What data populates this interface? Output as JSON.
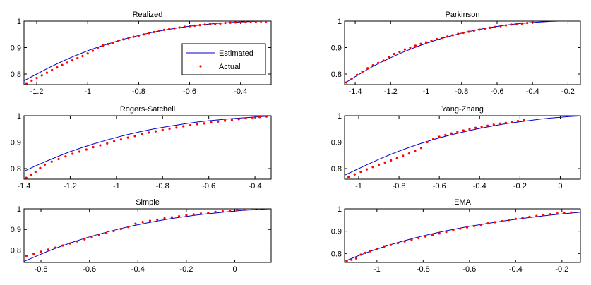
{
  "chart_data": [
    {
      "type": "line",
      "title": "Realized",
      "xlim": [
        -1.25,
        -0.28
      ],
      "ylim": [
        0.76,
        1.0
      ],
      "xticks": [
        "-1.2",
        "-1",
        "-0.8",
        "-0.6",
        "-0.4"
      ],
      "xtick_values": [
        -1.2,
        -1.0,
        -0.8,
        -0.6,
        -0.4
      ],
      "yticks": [
        "0.8",
        "0.9",
        "1"
      ],
      "ytick_values": [
        0.8,
        0.9,
        1.0
      ],
      "legend": {
        "position": "right",
        "entries": [
          "Estimated",
          "Actual"
        ]
      },
      "series": [
        {
          "name": "Estimated",
          "style": "line",
          "color": "#0000cc",
          "x": [
            -1.25,
            -1.2,
            -1.15,
            -1.1,
            -1.05,
            -1.0,
            -0.95,
            -0.9,
            -0.85,
            -0.8,
            -0.75,
            -0.7,
            -0.65,
            -0.6,
            -0.55,
            -0.5,
            -0.45,
            -0.4,
            -0.35,
            -0.3,
            -0.28
          ],
          "y": [
            0.775,
            0.8,
            0.825,
            0.848,
            0.869,
            0.888,
            0.905,
            0.92,
            0.934,
            0.946,
            0.957,
            0.966,
            0.974,
            0.981,
            0.986,
            0.991,
            0.994,
            0.997,
            0.999,
            1.0,
            1.0
          ]
        },
        {
          "name": "Actual",
          "style": "points",
          "color": "#ff0000",
          "x": [
            -1.24,
            -1.22,
            -1.2,
            -1.18,
            -1.16,
            -1.14,
            -1.12,
            -1.1,
            -1.08,
            -1.06,
            -1.04,
            -1.02,
            -1.0,
            -0.98,
            -0.96,
            -0.94,
            -0.92,
            -0.9,
            -0.88,
            -0.86,
            -0.84,
            -0.82,
            -0.8,
            -0.78,
            -0.76,
            -0.74,
            -0.72,
            -0.7,
            -0.68,
            -0.66,
            -0.64,
            -0.62,
            -0.6,
            -0.58,
            -0.56,
            -0.54,
            -0.52,
            -0.5,
            -0.48,
            -0.46,
            -0.44,
            -0.42,
            -0.4,
            -0.38,
            -0.36,
            -0.34,
            -0.32,
            -0.3
          ],
          "y": [
            0.765,
            0.775,
            0.785,
            0.795,
            0.805,
            0.815,
            0.825,
            0.834,
            0.843,
            0.852,
            0.86,
            0.868,
            0.878,
            0.888,
            0.9,
            0.908,
            0.913,
            0.918,
            0.925,
            0.931,
            0.936,
            0.941,
            0.945,
            0.95,
            0.955,
            0.959,
            0.963,
            0.967,
            0.97,
            0.973,
            0.976,
            0.979,
            0.981,
            0.983,
            0.985,
            0.987,
            0.989,
            0.99,
            0.991,
            0.993,
            0.994,
            0.995,
            0.996,
            0.997,
            0.998,
            0.998,
            0.999,
            0.999
          ]
        }
      ]
    },
    {
      "type": "line",
      "title": "Parkinson",
      "xlim": [
        -1.46,
        -0.13
      ],
      "ylim": [
        0.76,
        1.0
      ],
      "xticks": [
        "-1.4",
        "-1.2",
        "-1",
        "-0.8",
        "-0.6",
        "-0.4",
        "-0.2"
      ],
      "xtick_values": [
        -1.4,
        -1.2,
        -1.0,
        -0.8,
        -0.6,
        -0.4,
        -0.2
      ],
      "yticks": [
        "0.8",
        "0.9",
        "1"
      ],
      "ytick_values": [
        0.8,
        0.9,
        1.0
      ],
      "series": [
        {
          "name": "Estimated",
          "style": "line",
          "color": "#0000cc",
          "x": [
            -1.46,
            -1.4,
            -1.35,
            -1.3,
            -1.25,
            -1.2,
            -1.15,
            -1.1,
            -1.05,
            -1.0,
            -0.95,
            -0.9,
            -0.85,
            -0.8,
            -0.75,
            -0.7,
            -0.65,
            -0.6,
            -0.55,
            -0.5,
            -0.45,
            -0.4,
            -0.35,
            -0.3,
            -0.25,
            -0.2
          ],
          "y": [
            0.765,
            0.79,
            0.81,
            0.829,
            0.846,
            0.862,
            0.877,
            0.891,
            0.904,
            0.916,
            0.927,
            0.937,
            0.946,
            0.955,
            0.962,
            0.969,
            0.975,
            0.98,
            0.985,
            0.989,
            0.992,
            0.995,
            0.997,
            0.999,
            1.0,
            1.0
          ]
        },
        {
          "name": "Actual",
          "style": "points",
          "color": "#ff0000",
          "x": [
            -1.45,
            -1.42,
            -1.39,
            -1.36,
            -1.33,
            -1.3,
            -1.27,
            -1.24,
            -1.21,
            -1.18,
            -1.15,
            -1.12,
            -1.09,
            -1.06,
            -1.03,
            -1.0,
            -0.97,
            -0.94,
            -0.91,
            -0.88,
            -0.85,
            -0.82,
            -0.79,
            -0.76,
            -0.73,
            -0.7,
            -0.67,
            -0.64,
            -0.61,
            -0.58,
            -0.55,
            -0.52,
            -0.49,
            -0.46,
            -0.43,
            -0.4
          ],
          "y": [
            0.768,
            0.782,
            0.797,
            0.809,
            0.822,
            0.833,
            0.842,
            0.851,
            0.865,
            0.876,
            0.884,
            0.893,
            0.9,
            0.907,
            0.914,
            0.92,
            0.926,
            0.932,
            0.937,
            0.942,
            0.947,
            0.952,
            0.956,
            0.96,
            0.964,
            0.968,
            0.971,
            0.975,
            0.978,
            0.981,
            0.984,
            0.987,
            0.989,
            0.991,
            0.993,
            0.995
          ]
        }
      ]
    },
    {
      "type": "line",
      "title": "Rogers-Satchell",
      "xlim": [
        -1.4,
        -0.33
      ],
      "ylim": [
        0.76,
        1.0
      ],
      "xticks": [
        "-1.4",
        "-1.2",
        "-1",
        "-0.8",
        "-0.6",
        "-0.4"
      ],
      "xtick_values": [
        -1.4,
        -1.2,
        -1.0,
        -0.8,
        -0.6,
        -0.4
      ],
      "yticks": [
        "0.8",
        "0.9",
        "1"
      ],
      "ytick_values": [
        0.8,
        0.9,
        1.0
      ],
      "series": [
        {
          "name": "Estimated",
          "style": "line",
          "color": "#0000cc",
          "x": [
            -1.4,
            -1.35,
            -1.3,
            -1.25,
            -1.2,
            -1.15,
            -1.1,
            -1.05,
            -1.0,
            -0.95,
            -0.9,
            -0.85,
            -0.8,
            -0.75,
            -0.7,
            -0.65,
            -0.6,
            -0.55,
            -0.5,
            -0.45,
            -0.4,
            -0.35,
            -0.33
          ],
          "y": [
            0.79,
            0.81,
            0.829,
            0.847,
            0.864,
            0.879,
            0.893,
            0.906,
            0.918,
            0.929,
            0.939,
            0.948,
            0.956,
            0.963,
            0.97,
            0.976,
            0.981,
            0.985,
            0.989,
            0.992,
            0.995,
            0.998,
            0.999
          ]
        },
        {
          "name": "Actual",
          "style": "points",
          "color": "#ff0000",
          "x": [
            -1.39,
            -1.37,
            -1.35,
            -1.33,
            -1.31,
            -1.28,
            -1.25,
            -1.22,
            -1.19,
            -1.16,
            -1.13,
            -1.1,
            -1.07,
            -1.04,
            -1.01,
            -0.98,
            -0.95,
            -0.92,
            -0.89,
            -0.86,
            -0.83,
            -0.8,
            -0.77,
            -0.74,
            -0.71,
            -0.68,
            -0.65,
            -0.62,
            -0.59,
            -0.56,
            -0.53,
            -0.5,
            -0.47,
            -0.44,
            -0.41,
            -0.38,
            -0.35
          ],
          "y": [
            0.765,
            0.775,
            0.788,
            0.802,
            0.815,
            0.826,
            0.836,
            0.846,
            0.856,
            0.864,
            0.872,
            0.881,
            0.888,
            0.895,
            0.903,
            0.91,
            0.917,
            0.923,
            0.93,
            0.936,
            0.941,
            0.946,
            0.951,
            0.955,
            0.96,
            0.964,
            0.968,
            0.971,
            0.975,
            0.978,
            0.981,
            0.984,
            0.987,
            0.99,
            0.992,
            0.995,
            0.997
          ]
        }
      ]
    },
    {
      "type": "line",
      "title": "Yang-Zhang",
      "xlim": [
        -1.07,
        0.1
      ],
      "ylim": [
        0.76,
        1.0
      ],
      "xticks": [
        "-1",
        "-0.8",
        "-0.6",
        "-0.4",
        "-0.2",
        "0"
      ],
      "xtick_values": [
        -1.0,
        -0.8,
        -0.6,
        -0.4,
        -0.2,
        0.0
      ],
      "yticks": [
        "0.8",
        "0.9",
        "1"
      ],
      "ytick_values": [
        0.8,
        0.9,
        1.0
      ],
      "series": [
        {
          "name": "Estimated",
          "style": "line",
          "color": "#0000cc",
          "x": [
            -1.07,
            -1.0,
            -0.95,
            -0.9,
            -0.85,
            -0.8,
            -0.75,
            -0.7,
            -0.65,
            -0.6,
            -0.55,
            -0.5,
            -0.45,
            -0.4,
            -0.35,
            -0.3,
            -0.25,
            -0.2,
            -0.15,
            -0.1,
            -0.05,
            0.0,
            0.05,
            0.1
          ],
          "y": [
            0.775,
            0.8,
            0.818,
            0.835,
            0.851,
            0.866,
            0.88,
            0.893,
            0.905,
            0.916,
            0.926,
            0.935,
            0.944,
            0.952,
            0.959,
            0.966,
            0.972,
            0.977,
            0.982,
            0.987,
            0.991,
            0.994,
            0.997,
            0.999
          ]
        },
        {
          "name": "Actual",
          "style": "points",
          "color": "#ff0000",
          "x": [
            -1.05,
            -1.02,
            -0.99,
            -0.96,
            -0.93,
            -0.9,
            -0.87,
            -0.84,
            -0.81,
            -0.78,
            -0.75,
            -0.72,
            -0.69,
            -0.66,
            -0.63,
            -0.6,
            -0.57,
            -0.54,
            -0.51,
            -0.48,
            -0.45,
            -0.42,
            -0.39,
            -0.36,
            -0.33,
            -0.3,
            -0.27,
            -0.24,
            -0.21,
            -0.18
          ],
          "y": [
            0.768,
            0.778,
            0.788,
            0.797,
            0.806,
            0.815,
            0.823,
            0.831,
            0.839,
            0.848,
            0.857,
            0.866,
            0.878,
            0.9,
            0.912,
            0.92,
            0.927,
            0.933,
            0.939,
            0.944,
            0.949,
            0.954,
            0.958,
            0.962,
            0.966,
            0.97,
            0.973,
            0.977,
            0.98,
            0.983
          ]
        }
      ]
    },
    {
      "type": "line",
      "title": "Simple",
      "xlim": [
        -0.87,
        0.15
      ],
      "ylim": [
        0.74,
        1.0
      ],
      "xticks": [
        "-0.8",
        "-0.6",
        "-0.4",
        "-0.2",
        "0"
      ],
      "xtick_values": [
        -0.8,
        -0.6,
        -0.4,
        -0.2,
        0.0
      ],
      "yticks": [
        "0.8",
        "0.9",
        "1"
      ],
      "ytick_values": [
        0.8,
        0.9,
        1.0
      ],
      "series": [
        {
          "name": "Estimated",
          "style": "line",
          "color": "#0000cc",
          "x": [
            -0.87,
            -0.82,
            -0.77,
            -0.72,
            -0.67,
            -0.62,
            -0.57,
            -0.52,
            -0.47,
            -0.42,
            -0.37,
            -0.32,
            -0.27,
            -0.22,
            -0.17,
            -0.12,
            -0.07,
            -0.02,
            0.03,
            0.08,
            0.13,
            0.15
          ],
          "y": [
            0.745,
            0.77,
            0.795,
            0.817,
            0.838,
            0.857,
            0.874,
            0.89,
            0.905,
            0.918,
            0.93,
            0.941,
            0.951,
            0.96,
            0.968,
            0.975,
            0.981,
            0.987,
            0.992,
            0.996,
            0.999,
            1.0
          ]
        },
        {
          "name": "Actual",
          "style": "points",
          "color": "#ff0000",
          "x": [
            -0.86,
            -0.83,
            -0.8,
            -0.77,
            -0.74,
            -0.71,
            -0.68,
            -0.65,
            -0.62,
            -0.59,
            -0.56,
            -0.53,
            -0.5,
            -0.47,
            -0.44,
            -0.41,
            -0.38,
            -0.35,
            -0.32,
            -0.29,
            -0.26,
            -0.23,
            -0.2,
            -0.17,
            -0.14,
            -0.11,
            -0.08,
            -0.05,
            -0.02,
            0.01,
            0.04,
            0.07,
            0.1,
            0.13
          ],
          "y": [
            0.772,
            0.782,
            0.792,
            0.802,
            0.812,
            0.822,
            0.832,
            0.842,
            0.852,
            0.862,
            0.872,
            0.882,
            0.892,
            0.902,
            0.912,
            0.928,
            0.936,
            0.942,
            0.948,
            0.954,
            0.959,
            0.964,
            0.969,
            0.973,
            0.977,
            0.981,
            0.985,
            0.988,
            0.991,
            0.994,
            0.996,
            0.998,
            0.999,
            1.0
          ]
        }
      ]
    },
    {
      "type": "line",
      "title": "EMA",
      "xlim": [
        -1.14,
        -0.12
      ],
      "ylim": [
        0.76,
        1.0
      ],
      "xticks": [
        "-1",
        "-0.8",
        "-0.6",
        "-0.4",
        "-0.2"
      ],
      "xtick_values": [
        -1.0,
        -0.8,
        -0.6,
        -0.4,
        -0.2
      ],
      "yticks": [
        "0.8",
        "0.9",
        "1"
      ],
      "ytick_values": [
        0.8,
        0.9,
        1.0
      ],
      "series": [
        {
          "name": "Estimated",
          "style": "line",
          "color": "#0000cc",
          "x": [
            -1.14,
            -1.1,
            -1.05,
            -1.0,
            -0.95,
            -0.9,
            -0.85,
            -0.8,
            -0.75,
            -0.7,
            -0.65,
            -0.6,
            -0.55,
            -0.5,
            -0.45,
            -0.4,
            -0.35,
            -0.3,
            -0.25,
            -0.2,
            -0.15,
            -0.12
          ],
          "y": [
            0.765,
            0.782,
            0.802,
            0.82,
            0.837,
            0.852,
            0.866,
            0.879,
            0.891,
            0.902,
            0.912,
            0.922,
            0.93,
            0.938,
            0.946,
            0.953,
            0.96,
            0.966,
            0.972,
            0.977,
            0.982,
            0.985
          ]
        },
        {
          "name": "Actual",
          "style": "points",
          "color": "#ff0000",
          "x": [
            -1.13,
            -1.11,
            -1.09,
            -1.07,
            -1.05,
            -1.03,
            -1.0,
            -0.97,
            -0.94,
            -0.91,
            -0.88,
            -0.85,
            -0.82,
            -0.79,
            -0.76,
            -0.73,
            -0.7,
            -0.67,
            -0.64,
            -0.61,
            -0.58,
            -0.55,
            -0.52,
            -0.49,
            -0.46,
            -0.43,
            -0.4,
            -0.37,
            -0.34,
            -0.31,
            -0.28,
            -0.25,
            -0.22,
            -0.19,
            -0.16
          ],
          "y": [
            0.766,
            0.772,
            0.778,
            0.795,
            0.803,
            0.81,
            0.82,
            0.829,
            0.838,
            0.846,
            0.854,
            0.862,
            0.869,
            0.876,
            0.883,
            0.89,
            0.897,
            0.904,
            0.911,
            0.917,
            0.923,
            0.929,
            0.935,
            0.94,
            0.945,
            0.95,
            0.955,
            0.96,
            0.964,
            0.968,
            0.972,
            0.976,
            0.979,
            0.982,
            0.984
          ]
        }
      ]
    }
  ]
}
